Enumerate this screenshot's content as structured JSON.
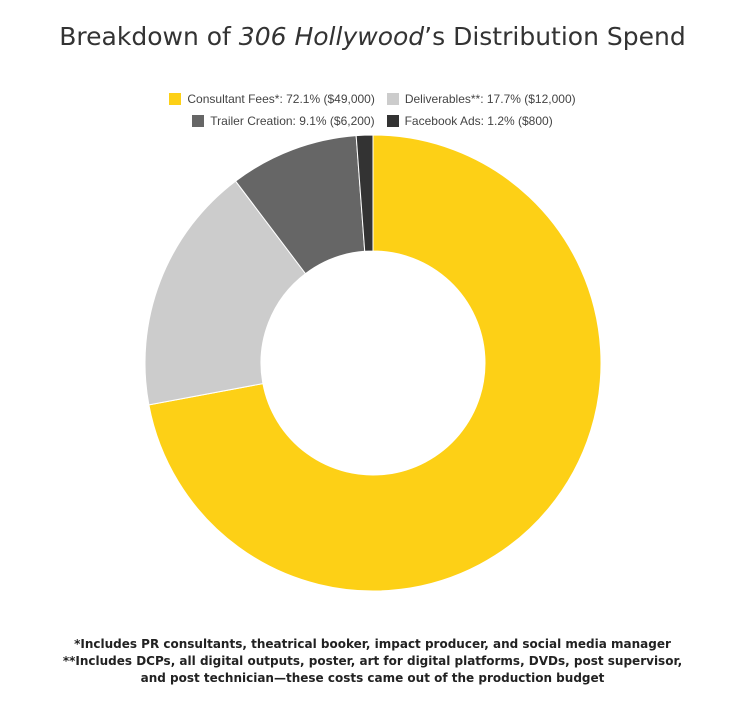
{
  "title": {
    "prefix": "Breakdown of ",
    "italic": "306 Hollywood",
    "suffix": "’s Distribution Spend"
  },
  "chart_data": {
    "type": "pie",
    "style": "donut",
    "title": "Breakdown of 306 Hollywood’s Distribution Spend",
    "categories": [
      "Consultant Fees*",
      "Deliverables**",
      "Trailer Creation",
      "Facebook Ads"
    ],
    "values": [
      49000,
      12000,
      6200,
      800
    ],
    "percents": [
      72.1,
      17.7,
      9.1,
      1.2
    ],
    "colors": [
      "#fdd016",
      "#cccccc",
      "#666666",
      "#333333"
    ],
    "legend_labels": [
      "Consultant Fees*: 72.1% ($49,000)",
      "Deliverables**: 17.7% ($12,000)",
      "Trailer Creation: 9.1% ($6,200)",
      "Facebook Ads: 1.2% ($800)"
    ],
    "legend_position": "top"
  },
  "footnotes": [
    "*Includes PR consultants, theatrical booker, impact producer, and social media manager",
    "**Includes DCPs, all digital outputs, poster, art for digital platforms, DVDs, post supervisor,",
    "and post technician—these costs came out of the production budget"
  ]
}
